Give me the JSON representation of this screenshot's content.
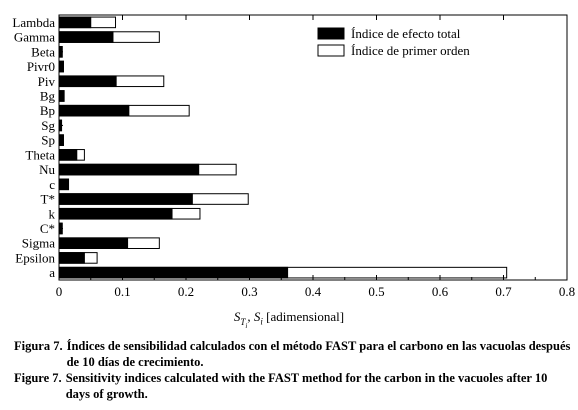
{
  "chart_data": {
    "type": "bar",
    "orientation": "horizontal",
    "stacked": "overlay",
    "categories": [
      "Lambda",
      "Gamma",
      "Beta",
      "Pivr0",
      "Piv",
      "Bg",
      "Bp",
      "Sg",
      "Sp",
      "Theta",
      "Nu",
      "c",
      "T*",
      "k",
      "C*",
      "Sigma",
      "Epsilon",
      "a"
    ],
    "series": [
      {
        "name": "Índice de efecto total",
        "color": "#000000",
        "values": [
          0.05,
          0.085,
          0.005,
          0.007,
          0.09,
          0.008,
          0.11,
          0.004,
          0.007,
          0.028,
          0.22,
          0.015,
          0.21,
          0.178,
          0.005,
          0.108,
          0.04,
          0.36
        ]
      },
      {
        "name": "Índice de primer orden",
        "color": "#ffffff",
        "values": [
          0.089,
          0.158,
          0.005,
          0.007,
          0.165,
          0.008,
          0.205,
          0.004,
          0.007,
          0.04,
          0.279,
          0.015,
          0.298,
          0.222,
          0.005,
          0.158,
          0.06,
          0.705
        ]
      }
    ],
    "xlim": [
      0,
      0.8
    ],
    "xticks": [
      "0",
      "0.1",
      "0.2",
      "0.3",
      "0.4",
      "0.5",
      "0.6",
      "0.7",
      "0.8"
    ],
    "xlabel": "S_{T_i}, S_i [adimensional]",
    "legend_position": "top-right",
    "grid": false
  },
  "xlabel_main": "S",
  "xlabel_sub_t": "T",
  "xlabel_sub_t_i": "i",
  "xlabel_sep": ",",
  "xlabel_s": "S",
  "xlabel_sub_i": "i",
  "xlabel_unit": "[adimensional]",
  "caption": {
    "es_label": "Figura 7.",
    "es_text": "Índices de sensibilidad calculados con el método FAST para el carbono en las vacuolas después de 10 días de crecimiento.",
    "en_label": "Figure 7.",
    "en_text": "Sensitivity indices calculated with the FAST method for the carbon in the vacuoles after 10 days of growth."
  }
}
